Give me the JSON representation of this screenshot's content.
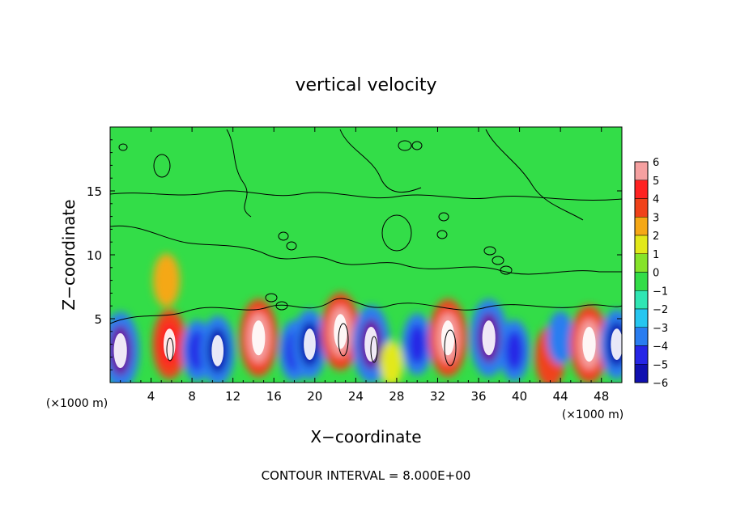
{
  "chart_data": {
    "type": "heatmap",
    "title": "vertical velocity",
    "xlabel": "X−coordinate",
    "ylabel": "Z−coordinate",
    "x_unit_left": "(×1000 m)",
    "x_unit_right": "(×1000 m)",
    "footer": "CONTOUR INTERVAL = 8.000E+00",
    "xlim": [
      0,
      50
    ],
    "ylim": [
      0,
      20
    ],
    "x_ticks": [
      4,
      8,
      12,
      16,
      20,
      24,
      28,
      32,
      36,
      40,
      44,
      48
    ],
    "x_tick_labels": [
      "4",
      "8",
      "12",
      "16",
      "20",
      "24",
      "28",
      "32",
      "36",
      "40",
      "44",
      "48"
    ],
    "y_ticks": [
      5,
      10,
      15
    ],
    "y_tick_labels": [
      "5",
      "10",
      "15"
    ],
    "colorbar": {
      "levels": [
        -6,
        -5,
        -4,
        -3,
        -2,
        -1,
        0,
        1,
        2,
        3,
        4,
        5,
        6
      ],
      "labels": [
        "−6",
        "−5",
        "−4",
        "−3",
        "−2",
        "−1",
        "0",
        "1",
        "2",
        "3",
        "4",
        "5",
        "6"
      ],
      "colors": [
        "#6a0fa0",
        "#1010b0",
        "#2626e6",
        "#2a7df0",
        "#26c6f0",
        "#30e6b4",
        "#33dd48",
        "#86e32a",
        "#e2e81a",
        "#f5a816",
        "#f0421a",
        "#ff2222",
        "#f5a0a0"
      ]
    },
    "cells": [
      {
        "x": 1.0,
        "z": 2.5,
        "w": -6
      },
      {
        "x": 5.8,
        "z": 3.0,
        "w": 5
      },
      {
        "x": 8.5,
        "z": 2.5,
        "w": -4
      },
      {
        "x": 10.5,
        "z": 2.5,
        "w": -5
      },
      {
        "x": 14.5,
        "z": 3.5,
        "w": 6
      },
      {
        "x": 18.0,
        "z": 2.5,
        "w": -4
      },
      {
        "x": 19.5,
        "z": 3.0,
        "w": -5
      },
      {
        "x": 22.5,
        "z": 4.0,
        "w": 6
      },
      {
        "x": 25.5,
        "z": 3.0,
        "w": -6
      },
      {
        "x": 27.5,
        "z": 1.5,
        "w": 2
      },
      {
        "x": 30.0,
        "z": 3.0,
        "w": -4
      },
      {
        "x": 33.0,
        "z": 3.5,
        "w": 6
      },
      {
        "x": 37.0,
        "z": 3.5,
        "w": -6
      },
      {
        "x": 39.5,
        "z": 2.5,
        "w": -4
      },
      {
        "x": 43.0,
        "z": 2.0,
        "w": 4
      },
      {
        "x": 44.0,
        "z": 3.5,
        "w": -3
      },
      {
        "x": 46.8,
        "z": 3.0,
        "w": 6
      },
      {
        "x": 49.5,
        "z": 3.0,
        "w": -5
      },
      {
        "x": 5.5,
        "z": 8.0,
        "w": 3
      }
    ]
  }
}
